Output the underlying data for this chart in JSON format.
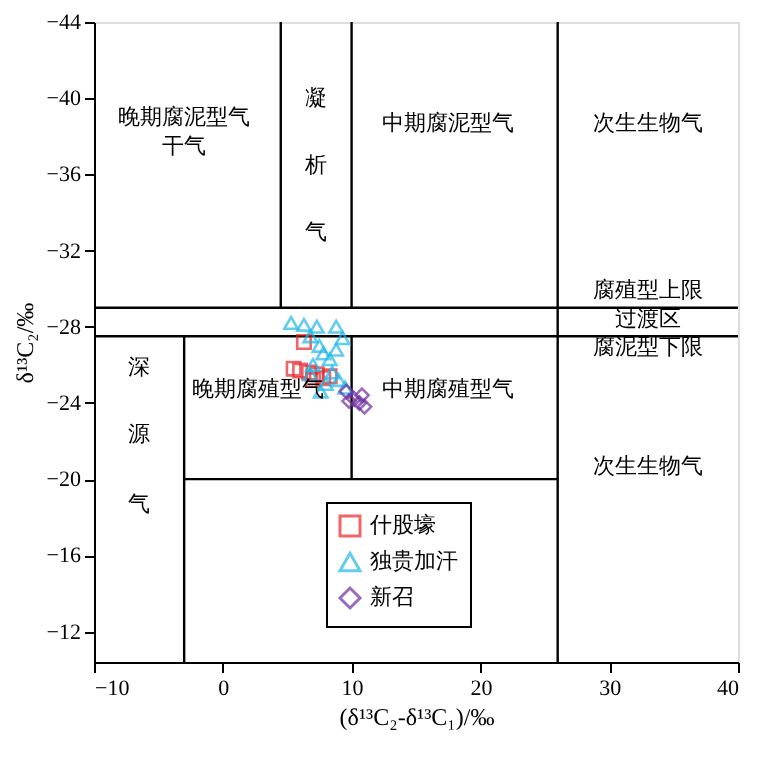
{
  "chart_data": {
    "type": "scatter",
    "xlabel": "(δ¹³C₂-δ¹³C₁)/‰",
    "ylabel": "δ¹³C₂/‰",
    "xlim": [
      -10,
      40
    ],
    "xticks": [
      -10,
      0,
      10,
      20,
      30,
      40
    ],
    "ylim": [
      -10.4,
      -44
    ],
    "yticks": [
      -44,
      -40,
      -36,
      -32,
      -28,
      -24,
      -20,
      -16,
      -12
    ],
    "grid": false,
    "legend": "bottom",
    "series": [
      {
        "name": "什股壕",
        "type": "scatter",
        "marker": "square",
        "color": "#e8262a",
        "x": [
          5.5,
          6.0,
          6.7,
          7.3,
          7.8,
          8.3,
          6.3,
          7.0
        ],
        "values": [
          -25.8,
          -25.7,
          -25.6,
          -25.5,
          -25.3,
          -25.4,
          -27.2,
          -25.2
        ]
      },
      {
        "name": "独贵加汗",
        "type": "scatter",
        "marker": "triangle",
        "color": "#20b8e8",
        "x": [
          5.3,
          6.3,
          7.3,
          8.8,
          6.8,
          7.5,
          7.8,
          8.3,
          7.0,
          8.5,
          9.0,
          9.5,
          8.0,
          7.6,
          6.8,
          8.8,
          9.3
        ],
        "values": [
          -28.2,
          -28.1,
          -28.0,
          -28.0,
          -27.5,
          -27.0,
          -26.6,
          -26.3,
          -26.0,
          -25.6,
          -25.2,
          -24.8,
          -25.0,
          -24.6,
          -25.5,
          -26.8,
          -27.4
        ]
      },
      {
        "name": "新召",
        "type": "scatter",
        "marker": "diamond",
        "color": "#7030a0",
        "x": [
          9.6,
          10.2,
          10.6,
          11.0,
          10.8,
          9.8
        ],
        "values": [
          -24.6,
          -24.2,
          -24.0,
          -23.8,
          -24.4,
          -24.1
        ]
      },
      {
        "type": "line",
        "color": "#000000",
        "x": [
          -10,
          40
        ],
        "values": [
          -29,
          -29
        ]
      },
      {
        "type": "line",
        "color": "#000000",
        "x": [
          -10,
          40
        ],
        "values": [
          -27.5,
          -27.5
        ]
      },
      {
        "type": "line",
        "color": "#000000",
        "x": [
          -3,
          26
        ],
        "values": [
          -20,
          -20
        ]
      },
      {
        "type": "line",
        "color": "#000000",
        "x": [
          -3,
          -3
        ],
        "values": [
          -27.5,
          -10.4
        ]
      },
      {
        "type": "line",
        "color": "#000000",
        "x": [
          4.5,
          4.5
        ],
        "values": [
          -44,
          -29
        ]
      },
      {
        "type": "line",
        "color": "#000000",
        "x": [
          10,
          10
        ],
        "values": [
          -44,
          -29
        ]
      },
      {
        "type": "line",
        "color": "#000000",
        "x": [
          10,
          10
        ],
        "values": [
          -27.5,
          -20
        ]
      },
      {
        "type": "line",
        "color": "#000000",
        "x": [
          26,
          26
        ],
        "values": [
          -44,
          -10.4
        ]
      }
    ],
    "annotations": [
      "晚期腐泥型气",
      "干气",
      "凝",
      "析",
      "气",
      "中期腐泥型气",
      "次生生物气",
      "腐殖型上限",
      "过渡区",
      "腐泥型下限",
      "深",
      "源",
      "气",
      "晚期腐殖型气",
      "中期腐殖型气",
      "次生生物气"
    ]
  }
}
